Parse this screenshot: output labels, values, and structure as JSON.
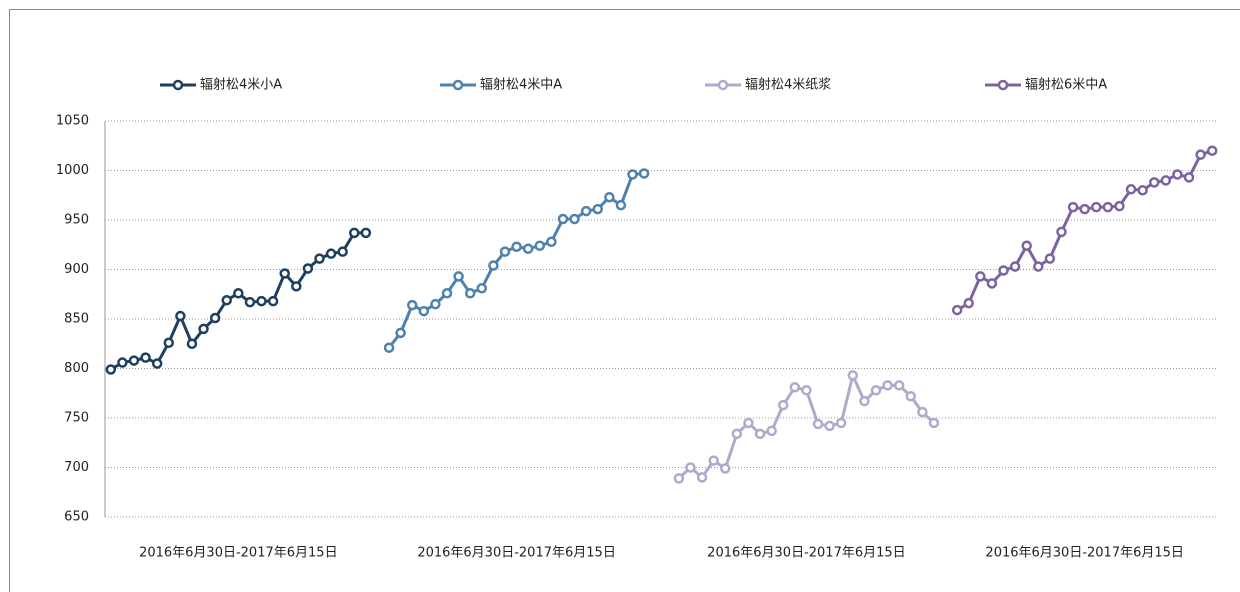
{
  "chart_data": {
    "type": "line",
    "categories": [
      null,
      null,
      null,
      null,
      null,
      null,
      null,
      null,
      null,
      null,
      null,
      "2016年6月30日-2017年6月15日",
      null,
      null,
      null,
      null,
      null,
      null,
      null,
      null,
      null,
      null,
      null,
      null,
      null,
      null,
      null,
      null,
      null,
      null,
      null,
      null,
      null,
      null,
      null,
      "2016年6月30日-2017年6月15日",
      null,
      null,
      null,
      null,
      null,
      null,
      null,
      null,
      null,
      null,
      null,
      null,
      null,
      null,
      null,
      null,
      null,
      null,
      null,
      null,
      null,
      null,
      null,
      null,
      "2016年6月30日-2017年6月15日",
      null,
      null,
      null,
      null,
      null,
      null,
      null,
      null,
      null,
      null,
      null,
      null,
      null,
      null,
      null,
      null,
      null,
      null,
      null,
      null,
      null,
      null,
      null,
      "2016年6月30日-2017年6月15日",
      null,
      null,
      null,
      null,
      null,
      null,
      null,
      null,
      null,
      null,
      null
    ],
    "series": [
      {
        "name": "辐射松4米小A",
        "color": "#1f3f60",
        "values": [
          799,
          806,
          808,
          811,
          805,
          826,
          853,
          825,
          840,
          851,
          869,
          876,
          867,
          868,
          868,
          896,
          883,
          901,
          911,
          916,
          918,
          937,
          937,
          null,
          null,
          null,
          null,
          null,
          null,
          null,
          null,
          null,
          null,
          null,
          null,
          null,
          null,
          null,
          null,
          null,
          null,
          null,
          null,
          null,
          null,
          null,
          null,
          null,
          null,
          null,
          null,
          null,
          null,
          null,
          null,
          null,
          null,
          null,
          null,
          null,
          null,
          null,
          null,
          null,
          null,
          null,
          null,
          null,
          null,
          null,
          null,
          null,
          null,
          null,
          null,
          null,
          null,
          null,
          null,
          null,
          null,
          null,
          null,
          null,
          null,
          null,
          null,
          null,
          null,
          null,
          null,
          null,
          null,
          null,
          null,
          null
        ]
      },
      {
        "name": "辐射松4米中A",
        "color": "#4e81ad",
        "values": [
          null,
          null,
          null,
          null,
          null,
          null,
          null,
          null,
          null,
          null,
          null,
          null,
          null,
          null,
          null,
          null,
          null,
          null,
          null,
          null,
          null,
          null,
          null,
          null,
          821,
          836,
          864,
          858,
          865,
          876,
          893,
          876,
          881,
          904,
          918,
          923,
          921,
          924,
          928,
          951,
          951,
          959,
          961,
          973,
          965,
          996,
          997,
          null,
          null,
          null,
          null,
          null,
          null,
          null,
          null,
          null,
          null,
          null,
          null,
          null,
          null,
          null,
          null,
          null,
          null,
          null,
          null,
          null,
          null,
          null,
          null,
          null,
          null,
          null,
          null,
          null,
          null,
          null,
          null,
          null,
          null,
          null,
          null,
          null,
          null,
          null,
          null,
          null,
          null,
          null,
          null,
          null,
          null,
          null,
          null,
          null
        ]
      },
      {
        "name": "辐射松4米纸浆",
        "color": "#b3a7cc",
        "values": [
          null,
          null,
          null,
          null,
          null,
          null,
          null,
          null,
          null,
          null,
          null,
          null,
          null,
          null,
          null,
          null,
          null,
          null,
          null,
          null,
          null,
          null,
          null,
          null,
          null,
          null,
          null,
          null,
          null,
          null,
          null,
          null,
          null,
          null,
          null,
          null,
          null,
          null,
          null,
          null,
          null,
          null,
          null,
          null,
          null,
          null,
          null,
          null,
          null,
          689,
          700,
          690,
          707,
          699,
          734,
          745,
          734,
          737,
          763,
          781,
          778,
          744,
          742,
          745,
          793,
          767,
          778,
          783,
          783,
          772,
          756,
          745,
          null,
          null,
          null,
          null,
          null,
          null,
          null,
          null,
          null,
          null,
          null,
          null,
          null,
          null,
          null,
          null,
          null,
          null,
          null,
          null,
          null,
          null,
          null,
          null
        ]
      },
      {
        "name": "辐射松6米中A",
        "color": "#7c63a0",
        "values": [
          null,
          null,
          null,
          null,
          null,
          null,
          null,
          null,
          null,
          null,
          null,
          null,
          null,
          null,
          null,
          null,
          null,
          null,
          null,
          null,
          null,
          null,
          null,
          null,
          null,
          null,
          null,
          null,
          null,
          null,
          null,
          null,
          null,
          null,
          null,
          null,
          null,
          null,
          null,
          null,
          null,
          null,
          null,
          null,
          null,
          null,
          null,
          null,
          null,
          null,
          null,
          null,
          null,
          null,
          null,
          null,
          null,
          null,
          null,
          null,
          null,
          null,
          null,
          null,
          null,
          null,
          null,
          null,
          null,
          null,
          null,
          null,
          null,
          859,
          866,
          893,
          886,
          899,
          903,
          924,
          903,
          911,
          938,
          963,
          961,
          963,
          963,
          964,
          981,
          980,
          988,
          990,
          996,
          993,
          1016,
          1020
        ]
      }
    ],
    "ylim": [
      650,
      1050
    ],
    "yticks": [
      650,
      700,
      750,
      800,
      850,
      900,
      950,
      1000,
      1050
    ],
    "grid": true,
    "legend": "top"
  }
}
